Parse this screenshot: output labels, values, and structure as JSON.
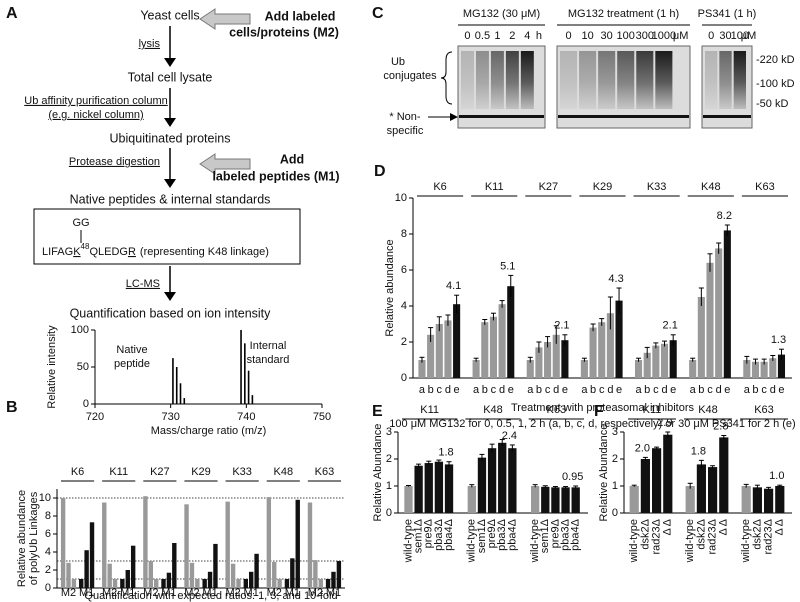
{
  "panel_labels": [
    "A",
    "B",
    "C",
    "D",
    "E",
    "F"
  ],
  "diagram": {
    "steps": [
      "Yeast cells",
      "Total cell lysate",
      "Ubiquitinated proteins",
      "Native peptides & internal standards",
      "Quantification based on ion intensity"
    ],
    "arrow_labels": [
      [
        "lysis"
      ],
      [
        "Ub affinity purification column",
        "(e.g. nickel column)"
      ],
      [
        "Protease digestion"
      ],
      [
        "LC-MS"
      ]
    ],
    "additions": [
      [
        "Add labeled",
        "cells/proteins (M2)"
      ],
      [
        "Add",
        "labeled peptides (M1)"
      ]
    ],
    "peptide": {
      "modification": "GG",
      "sequence": [
        "LIFAG",
        "K",
        "48",
        "QLEDG",
        "R"
      ],
      "note": "(representing K48 linkage)"
    }
  },
  "gel": {
    "panels": [
      {
        "title": "MG132 (30 μM)",
        "lanes": [
          "0",
          "0.5",
          "1",
          "2",
          "4"
        ],
        "unit": "h"
      },
      {
        "title": "MG132 treatment (1 h)",
        "lanes": [
          "0",
          "10",
          "30",
          "100",
          "300",
          "1000"
        ],
        "unit": "μM"
      },
      {
        "title": "PS341 (1 h)",
        "lanes": [
          "0",
          "30",
          "100"
        ],
        "unit": "μM"
      }
    ],
    "bracket_label": [
      "Ub",
      "conjugates"
    ],
    "band_label": [
      "* Non-",
      "specific"
    ],
    "markers": [
      "-220 kD",
      "-100 kD",
      "-50 kD"
    ]
  },
  "chart_data": [
    {
      "type": "stick",
      "x": [
        730.3,
        730.8,
        731.3,
        731.8,
        739.3,
        739.8,
        740.3,
        740.8
      ],
      "values": [
        62,
        50,
        28,
        8,
        100,
        82,
        45,
        12
      ],
      "color": "#000000",
      "xlim": [
        720,
        750
      ],
      "xticks": [
        720,
        730,
        740,
        750
      ],
      "ylim": [
        0,
        100
      ],
      "yticks": [
        0,
        50,
        100
      ],
      "ylabel": "Relative intensity",
      "xlabel": "Mass/charge ratio (m/z)",
      "annotations": [
        [
          "Native",
          "peptide"
        ],
        [
          "Internal",
          "standard"
        ]
      ]
    },
    {
      "type": "bar",
      "categories": [
        "K6",
        "K11",
        "K27",
        "K29",
        "K33",
        "K48",
        "K63"
      ],
      "subgroups": [
        {
          "label": "M2",
          "color": "#999999",
          "values": [
            [
              10,
              2.8,
              1.0
            ],
            [
              9.5,
              2.7,
              1.0
            ],
            [
              10.2,
              3.0,
              1.0
            ],
            [
              9.3,
              2.8,
              1.0
            ],
            [
              9.6,
              2.7,
              1.0
            ],
            [
              10.1,
              2.9,
              1.0
            ],
            [
              9.5,
              3.1,
              1.0
            ]
          ]
        },
        {
          "label": "M1",
          "color": "#111111",
          "values": [
            [
              1.0,
              4.2,
              7.3
            ],
            [
              1.0,
              2.0,
              4.7
            ],
            [
              1.0,
              1.7,
              5.0
            ],
            [
              1.0,
              1.8,
              4.9
            ],
            [
              1.0,
              1.8,
              3.8
            ],
            [
              1.0,
              3.3,
              9.8
            ],
            [
              1.0,
              1.8,
              3.0
            ]
          ]
        }
      ],
      "reference_lines": [
        1,
        3,
        10
      ],
      "ylim": [
        0,
        11
      ],
      "yticks": [
        0,
        2,
        4,
        6,
        8,
        10
      ],
      "ylabel": [
        "Relative abundance",
        "of polyUb Linkages"
      ],
      "xlabel": "Quantification with expected ratios: 1, 3, and 10-fold"
    },
    {
      "type": "bar",
      "categories": [
        "K6",
        "K11",
        "K27",
        "K29",
        "K33",
        "K48",
        "K63"
      ],
      "series": [
        {
          "name": "a",
          "color": "#999999",
          "values": [
            1,
            1,
            1,
            1,
            1,
            1,
            1
          ],
          "errors": [
            0.15,
            0.1,
            0.15,
            0.1,
            0.1,
            0.1,
            0.2
          ]
        },
        {
          "name": "b",
          "color": "#999999",
          "values": [
            2.4,
            3.1,
            1.7,
            2.8,
            1.4,
            4.5,
            0.9
          ],
          "errors": [
            0.4,
            0.15,
            0.3,
            0.2,
            0.3,
            0.5,
            0.15
          ]
        },
        {
          "name": "c",
          "color": "#999999",
          "values": [
            3.0,
            3.4,
            2.0,
            3.1,
            1.8,
            6.4,
            0.9
          ],
          "errors": [
            0.4,
            0.2,
            0.3,
            0.2,
            0.15,
            0.5,
            0.15
          ]
        },
        {
          "name": "d",
          "color": "#999999",
          "values": [
            3.2,
            4.1,
            2.4,
            3.6,
            1.9,
            7.2,
            1.1
          ],
          "errors": [
            0.3,
            0.2,
            0.5,
            0.9,
            0.15,
            0.3,
            0.15
          ]
        },
        {
          "name": "e",
          "color": "#111111",
          "values": [
            4.1,
            5.1,
            2.1,
            4.3,
            2.1,
            8.2,
            1.3
          ],
          "errors": [
            0.5,
            0.6,
            0.3,
            0.7,
            0.3,
            0.3,
            0.3
          ],
          "show_values": true
        }
      ],
      "ylim": [
        0,
        10
      ],
      "yticks": [
        0,
        2,
        4,
        6,
        8,
        10
      ],
      "ylabel": "Relative abundance",
      "xlabel": "Treatment with proteasomal inhibitors",
      "note": "100 μM MG132 for 0, 0.5, 1, 2 h (a, b, c, d, respectively) or 30 μM PS341 for 2 h (e)"
    },
    {
      "type": "bar",
      "categories": [
        "K11",
        "K48",
        "K63"
      ],
      "series": [
        {
          "name": "wild-type",
          "color": "#999999",
          "values": [
            1,
            1,
            1
          ],
          "errors": [
            0.02,
            0.05,
            0.05
          ]
        },
        {
          "name": "sem1Δ",
          "color": "#111111",
          "values": [
            1.75,
            2.05,
            0.97
          ],
          "errors": [
            0.06,
            0.12,
            0.04
          ]
        },
        {
          "name": "pre9Δ",
          "color": "#111111",
          "values": [
            1.85,
            2.4,
            0.95
          ],
          "errors": [
            0.07,
            0.15,
            0.03
          ]
        },
        {
          "name": "pba3Δ",
          "color": "#111111",
          "values": [
            1.9,
            2.6,
            0.95
          ],
          "errors": [
            0.06,
            0.12,
            0.03
          ]
        },
        {
          "name": "pba4Δ",
          "color": "#111111",
          "values": [
            1.8,
            2.4,
            0.95
          ],
          "errors": [
            0.1,
            0.12,
            0.05
          ],
          "show_values": true
        }
      ],
      "ylim": [
        0,
        3
      ],
      "yticks": [
        0,
        1,
        2,
        3
      ],
      "ylabel": "Relative Abundance"
    },
    {
      "type": "bar",
      "categories": [
        "K11",
        "K48",
        "K63"
      ],
      "series": [
        {
          "name": "wild-type",
          "color": "#999999",
          "values": [
            1,
            1,
            1
          ],
          "errors": [
            0.03,
            0.1,
            0.06
          ]
        },
        {
          "name": "dsk2Δ",
          "color": "#111111",
          "values": [
            2.0,
            1.8,
            0.95
          ],
          "errors": [
            0.06,
            0.15,
            0.08
          ],
          "value_labels": [
            "2.0",
            "1.8",
            null
          ]
        },
        {
          "name": "rad23Δ",
          "color": "#111111",
          "values": [
            2.4,
            1.7,
            0.9
          ],
          "errors": [
            0.04,
            0.05,
            0.05
          ]
        },
        {
          "name": "Δ Δ",
          "color": "#111111",
          "values": [
            2.9,
            2.8,
            1.0
          ],
          "errors": [
            0.1,
            0.07,
            0.03
          ],
          "value_labels": [
            "2.9",
            "2.8",
            "1.0"
          ]
        }
      ],
      "ylim": [
        0,
        3
      ],
      "yticks": [
        0,
        1,
        2,
        3
      ],
      "ylabel": "Relative Abundance"
    }
  ]
}
